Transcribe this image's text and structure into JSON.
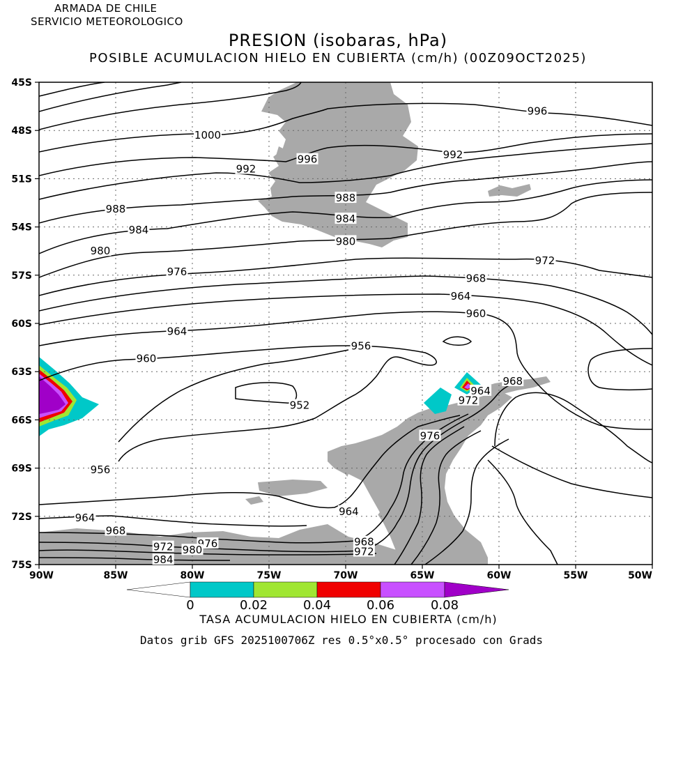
{
  "header": {
    "org_line1": "ARMADA DE CHILE",
    "org_line2": "SERVICIO METEOROLOGICO",
    "title": "PRESION (isobaras, hPa)",
    "subtitle": "POSIBLE ACUMULACION HIELO EN CUBIERTA (cm/h) (00Z09OCT2025)"
  },
  "map": {
    "lat_labels": [
      "45S",
      "48S",
      "51S",
      "54S",
      "57S",
      "60S",
      "63S",
      "66S",
      "69S",
      "72S",
      "75S"
    ],
    "lon_labels": [
      "90W",
      "85W",
      "80W",
      "75W",
      "70W",
      "65W",
      "60W",
      "55W",
      "50W"
    ],
    "isobar_labels": [
      {
        "text": "996",
        "lon": -57.5,
        "lat": -46.8
      },
      {
        "text": "1000",
        "lon": -79.0,
        "lat": -48.3
      },
      {
        "text": "996",
        "lon": -72.5,
        "lat": -49.8
      },
      {
        "text": "992",
        "lon": -63.0,
        "lat": -49.5
      },
      {
        "text": "992",
        "lon": -76.5,
        "lat": -50.4
      },
      {
        "text": "988",
        "lon": -85.0,
        "lat": -52.9
      },
      {
        "text": "988",
        "lon": -70.0,
        "lat": -52.2
      },
      {
        "text": "984",
        "lon": -83.5,
        "lat": -54.2
      },
      {
        "text": "984",
        "lon": -70.0,
        "lat": -53.5
      },
      {
        "text": "980",
        "lon": -86.0,
        "lat": -55.5
      },
      {
        "text": "980",
        "lon": -70.0,
        "lat": -54.9
      },
      {
        "text": "976",
        "lon": -81.0,
        "lat": -56.8
      },
      {
        "text": "972",
        "lon": -57.0,
        "lat": -56.1
      },
      {
        "text": "968",
        "lon": -61.5,
        "lat": -57.2
      },
      {
        "text": "964",
        "lon": -62.5,
        "lat": -58.3
      },
      {
        "text": "960",
        "lon": -61.5,
        "lat": -59.4
      },
      {
        "text": "964",
        "lon": -81.0,
        "lat": -60.5
      },
      {
        "text": "956",
        "lon": -69.0,
        "lat": -61.4
      },
      {
        "text": "960",
        "lon": -83.0,
        "lat": -62.2
      },
      {
        "text": "952",
        "lon": -73.0,
        "lat": -65.1
      },
      {
        "text": "964",
        "lon": -61.2,
        "lat": -64.2
      },
      {
        "text": "968",
        "lon": -59.1,
        "lat": -63.6
      },
      {
        "text": "972",
        "lon": -62.0,
        "lat": -64.8
      },
      {
        "text": "976",
        "lon": -64.5,
        "lat": -67.0
      },
      {
        "text": "956",
        "lon": -86.0,
        "lat": -69.1
      },
      {
        "text": "964",
        "lon": -69.8,
        "lat": -71.7
      },
      {
        "text": "964",
        "lon": -87.0,
        "lat": -72.1
      },
      {
        "text": "968",
        "lon": -85.0,
        "lat": -72.9
      },
      {
        "text": "968",
        "lon": -68.8,
        "lat": -73.6
      },
      {
        "text": "972",
        "lon": -68.8,
        "lat": -74.2
      },
      {
        "text": "972",
        "lon": -81.9,
        "lat": -73.9
      },
      {
        "text": "976",
        "lon": -79.0,
        "lat": -73.7
      },
      {
        "text": "980",
        "lon": -80.0,
        "lat": -74.1
      },
      {
        "text": "984",
        "lon": -81.9,
        "lat": -74.7
      }
    ]
  },
  "colorbar": {
    "labels": [
      "0",
      "0.02",
      "0.04",
      "0.06",
      "0.08"
    ],
    "colors": [
      "#ffffff",
      "#00c8c8",
      "#a0e632",
      "#f00000",
      "#c850ff",
      "#a000c8"
    ],
    "title": "TASA ACUMULACION HIELO EN CUBIERTA (cm/h)"
  },
  "footer": "Datos grib GFS 2025100706Z res 0.5°x0.5° procesado con Grads"
}
